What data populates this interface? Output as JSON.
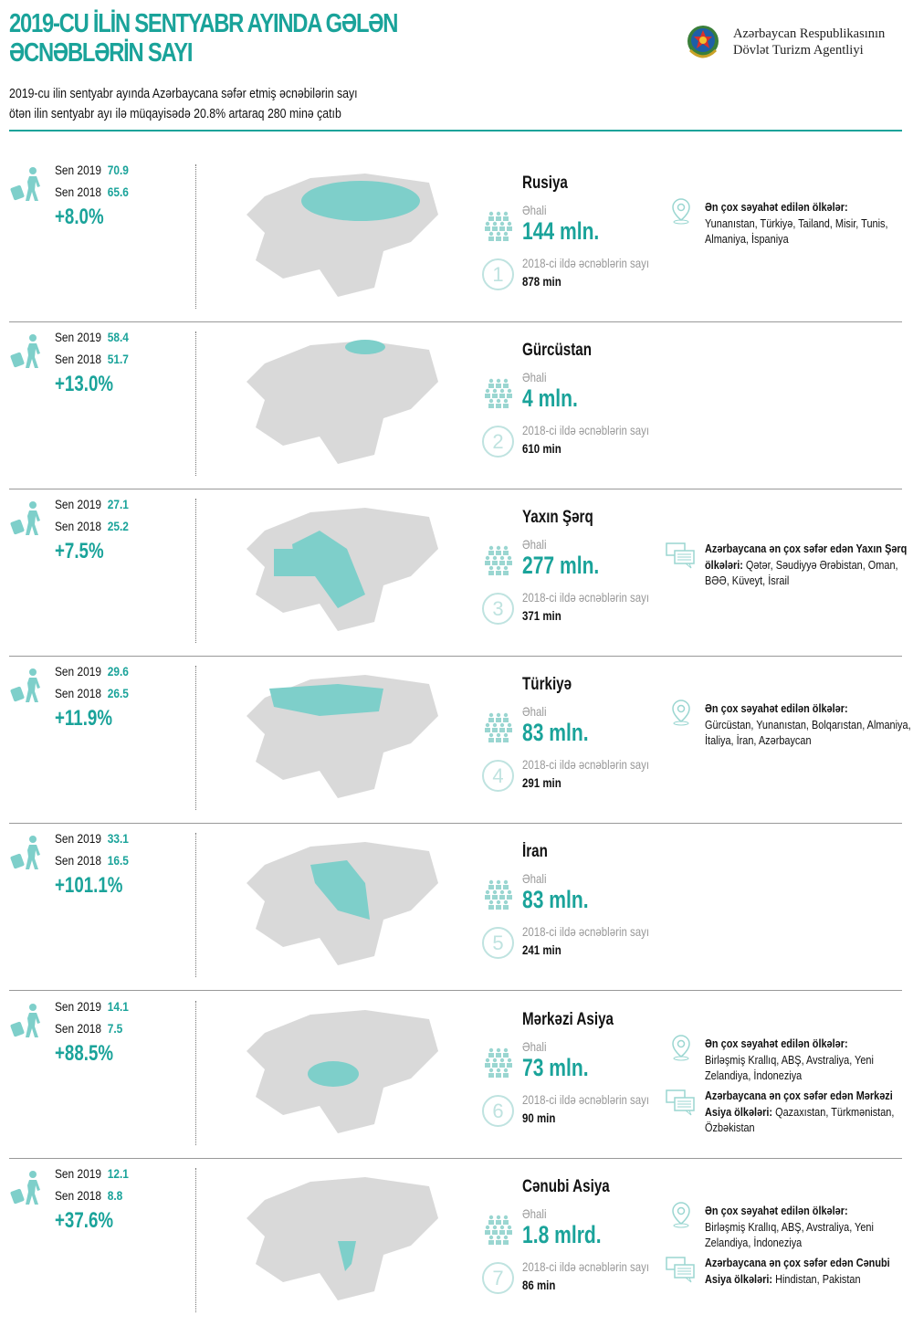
{
  "header": {
    "title_line1": "2019-CU İLİN SENTYABR AYINDA GƏLƏN",
    "title_line2": "ƏCNƏBLƏRİN SAYI",
    "agency_line1": "Azərbaycan Respublikasının",
    "agency_line2": "Dövlət Turizm Agentliyi",
    "intro_line1": "2019-cu ilin sentyabr ayında Azərbaycana səfər etmiş əcnəbilərin sayı",
    "intro_line2": "ötən ilin sentyabr ayı ilə müqayisədə 20.8% artaraq 280 minə çatıb"
  },
  "colors": {
    "accent": "#1aa39a",
    "map_gray": "#d9d9d9",
    "icon_light": "#bfe3e0"
  },
  "labels": {
    "sen2019": "Sen 2019",
    "sen2018": "Sen 2018",
    "population": "Əhali",
    "visitors2018": "2018-ci ildə əcnəblərin sayı"
  },
  "rows": [
    {
      "region": "Rusiya",
      "v2019": "70.9",
      "v2018": "65.6",
      "change": "+8.0%",
      "population": "144 mln.",
      "number": "1",
      "visitors2018": "878 min",
      "travel_title": "Ən çox səyahət edilən ölkələr:",
      "travel_list": "Yunanıstan, Türkiyə, Tailand, Misir, Tunis, Almaniya, İspaniya"
    },
    {
      "region": "Gürcüstan",
      "v2019": "58.4",
      "v2018": "51.7",
      "change": "+13.0%",
      "population": "4 mln.",
      "number": "2",
      "visitors2018": "610 min"
    },
    {
      "region": "Yaxın Şərq",
      "v2019": "27.1",
      "v2018": "25.2",
      "change": "+7.5%",
      "population": "277 mln.",
      "number": "3",
      "visitors2018": "371 min",
      "top_title": "Azərbaycana ən çox səfər edən Yaxın Şərq ölkələri:",
      "top_list": "Qətər, Səudiyyə Ərəbistan, Oman, BƏƏ, Küveyt, İsrail"
    },
    {
      "region": "Türkiyə",
      "v2019": "29.6",
      "v2018": "26.5",
      "change": "+11.9%",
      "population": "83 mln.",
      "number": "4",
      "visitors2018": "291 min",
      "travel_title": "Ən çox səyahət edilən ölkələr:",
      "travel_list": "Gürcüstan, Yunanıstan, Bolqarıstan, Almaniya, İtaliya, İran, Azərbaycan"
    },
    {
      "region": "İran",
      "v2019": "33.1",
      "v2018": "16.5",
      "change": "+101.1%",
      "population": "83 mln.",
      "number": "5",
      "visitors2018": "241 min"
    },
    {
      "region": "Mərkəzi Asiya",
      "v2019": "14.1",
      "v2018": "7.5",
      "change": "+88.5%",
      "population": "73 mln.",
      "number": "6",
      "visitors2018": "90 min",
      "travel_title": "Ən çox səyahət edilən ölkələr:",
      "travel_list": "Birləşmiş Krallıq, ABŞ, Avstraliya, Yeni Zelandiya, İndoneziya",
      "top_title": "Azərbaycana ən çox səfər edən Mərkəzi Asiya ölkələri:",
      "top_list": "Qazaxıstan, Türkmənistan, Özbəkistan"
    },
    {
      "region": "Cənubi Asiya",
      "v2019": "12.1",
      "v2018": "8.8",
      "change": "+37.6%",
      "population": "1.8 mlrd.",
      "number": "7",
      "visitors2018": "86  min",
      "travel_title": "Ən çox səyahət edilən ölkələr:",
      "travel_list": "Birləşmiş Krallıq, ABŞ, Avstraliya, Yeni Zelandiya, İndoneziya",
      "top_title": "Azərbaycana ən çox səfər edən Cənubi Asiya ölkələri:",
      "top_list": "Hindistan, Pakistan"
    }
  ]
}
